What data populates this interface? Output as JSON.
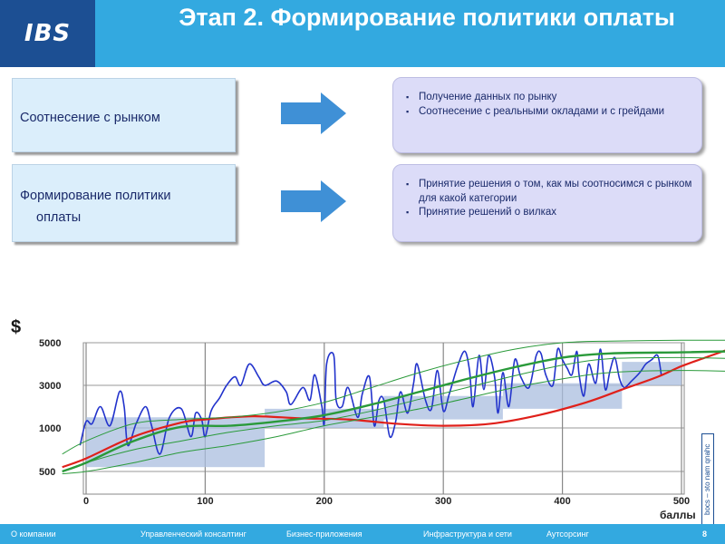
{
  "header": {
    "logo": "IBS",
    "title": "Этап 2. Формирование политики оплаты"
  },
  "rows": [
    {
      "left_lines": [
        "Соотнесение с рынком"
      ],
      "bullets": [
        "Получение данных по рынку",
        "Соотнесение с реальными окладами и с грейдами"
      ]
    },
    {
      "left_lines": [
        "Формирование политики",
        "оплаты"
      ],
      "bullets": [
        "Принятие решения о том, как мы соотносимся с рынком для какой категории",
        "Принятие решений о вилках"
      ]
    }
  ],
  "colors": {
    "header_bg": "#33a9e0",
    "logo_bg": "#1c4f93",
    "arrow": "#3f90d6",
    "blue_line": "#2233cc",
    "red_line": "#e0201a",
    "green_line": "#2a9a3a",
    "band": "#a9bedf"
  },
  "side_text": "bocs – эtо nam qnahc",
  "chart_data": {
    "type": "line",
    "y_unit_label": "$",
    "xlabel": "баллы",
    "x_ticks": [
      0,
      100,
      200,
      300,
      400,
      500
    ],
    "y_ticks": [
      500,
      1000,
      3000,
      5000
    ],
    "xlim": [
      0,
      500
    ],
    "grid": "vertical and horizontal gridlines",
    "bands": [
      {
        "x0": 0,
        "x1": 150,
        "ylo": 550,
        "yhi": 1500
      },
      {
        "x0": 150,
        "x1": 250,
        "ylo": 1000,
        "yhi": 1900
      },
      {
        "x0": 250,
        "x1": 350,
        "ylo": 1400,
        "yhi": 2500
      },
      {
        "x0": 350,
        "x1": 450,
        "ylo": 1900,
        "yhi": 3100
      },
      {
        "x0": 450,
        "x1": 550,
        "ylo": 3000,
        "yhi": 4100
      }
    ],
    "series": [
      {
        "style": "blue",
        "points": [
          [
            -5,
            800
          ],
          [
            0,
            1300
          ],
          [
            5,
            1200
          ],
          [
            12,
            2000
          ],
          [
            20,
            1100
          ],
          [
            28,
            2700
          ],
          [
            32,
            2000
          ],
          [
            35,
            800
          ],
          [
            42,
            1200
          ],
          [
            50,
            2000
          ],
          [
            55,
            1100
          ],
          [
            62,
            700
          ],
          [
            70,
            1500
          ],
          [
            80,
            1900
          ],
          [
            88,
            900
          ],
          [
            92,
            1700
          ],
          [
            97,
            1400
          ],
          [
            100,
            900
          ],
          [
            105,
            1800
          ],
          [
            112,
            2400
          ],
          [
            118,
            3000
          ],
          [
            125,
            3400
          ],
          [
            130,
            3000
          ],
          [
            137,
            4000
          ],
          [
            145,
            3400
          ],
          [
            150,
            3000
          ],
          [
            160,
            3200
          ],
          [
            168,
            2700
          ],
          [
            172,
            2100
          ],
          [
            182,
            2900
          ],
          [
            188,
            2300
          ],
          [
            192,
            3500
          ],
          [
            198,
            2000
          ],
          [
            200,
            1200
          ],
          [
            202,
            4000
          ],
          [
            208,
            4400
          ],
          [
            210,
            2300
          ],
          [
            215,
            2000
          ],
          [
            220,
            2900
          ],
          [
            228,
            1500
          ],
          [
            232,
            2600
          ],
          [
            238,
            3400
          ],
          [
            242,
            1100
          ],
          [
            246,
            2300
          ],
          [
            250,
            2300
          ],
          [
            255,
            900
          ],
          [
            260,
            1300
          ],
          [
            264,
            2700
          ],
          [
            270,
            1700
          ],
          [
            275,
            3100
          ],
          [
            278,
            4000
          ],
          [
            285,
            2300
          ],
          [
            290,
            1900
          ],
          [
            295,
            3700
          ],
          [
            300,
            1800
          ],
          [
            305,
            2600
          ],
          [
            312,
            3900
          ],
          [
            318,
            4600
          ],
          [
            322,
            3700
          ],
          [
            325,
            2000
          ],
          [
            330,
            4400
          ],
          [
            334,
            2800
          ],
          [
            338,
            4400
          ],
          [
            343,
            3400
          ],
          [
            346,
            1700
          ],
          [
            350,
            3600
          ],
          [
            355,
            2000
          ],
          [
            360,
            4200
          ],
          [
            365,
            3400
          ],
          [
            372,
            2900
          ],
          [
            378,
            4400
          ],
          [
            382,
            4500
          ],
          [
            386,
            3500
          ],
          [
            392,
            3000
          ],
          [
            396,
            4700
          ],
          [
            400,
            4200
          ],
          [
            404,
            3800
          ],
          [
            408,
            3500
          ],
          [
            412,
            4600
          ],
          [
            414,
            3500
          ],
          [
            418,
            2500
          ],
          [
            422,
            4000
          ],
          [
            428,
            3100
          ],
          [
            432,
            4700
          ],
          [
            436,
            2800
          ],
          [
            440,
            3700
          ],
          [
            444,
            4300
          ],
          [
            448,
            3300
          ],
          [
            452,
            2900
          ],
          [
            458,
            3200
          ],
          [
            465,
            3600
          ],
          [
            470,
            4000
          ],
          [
            475,
            4200
          ],
          [
            480,
            4400
          ],
          [
            483,
            3500
          ]
        ]
      },
      {
        "style": "red",
        "points": [
          [
            -20,
            550
          ],
          [
            0,
            650
          ],
          [
            40,
            900
          ],
          [
            80,
            1250
          ],
          [
            100,
            1400
          ],
          [
            140,
            1550
          ],
          [
            180,
            1450
          ],
          [
            220,
            1400
          ],
          [
            260,
            1200
          ],
          [
            300,
            1100
          ],
          [
            340,
            1200
          ],
          [
            380,
            1600
          ],
          [
            420,
            2200
          ],
          [
            450,
            2800
          ],
          [
            480,
            3400
          ],
          [
            500,
            3900
          ],
          [
            520,
            4300
          ],
          [
            545,
            4800
          ]
        ]
      },
      {
        "style": "green",
        "points": [
          [
            -20,
            500
          ],
          [
            0,
            600
          ],
          [
            40,
            850
          ],
          [
            80,
            1050
          ],
          [
            120,
            1100
          ],
          [
            160,
            1300
          ],
          [
            200,
            1600
          ],
          [
            240,
            2100
          ],
          [
            280,
            2700
          ],
          [
            320,
            3300
          ],
          [
            360,
            3850
          ],
          [
            400,
            4300
          ],
          [
            440,
            4500
          ],
          [
            500,
            4550
          ],
          [
            545,
            4600
          ]
        ]
      },
      {
        "style": "thin-green",
        "points": [
          [
            -20,
            700
          ],
          [
            0,
            850
          ],
          [
            40,
            1200
          ],
          [
            80,
            1400
          ],
          [
            120,
            1500
          ],
          [
            160,
            1750
          ],
          [
            200,
            2200
          ],
          [
            240,
            2900
          ],
          [
            280,
            3600
          ],
          [
            320,
            4200
          ],
          [
            360,
            4700
          ],
          [
            400,
            5000
          ],
          [
            440,
            5100
          ],
          [
            500,
            5150
          ],
          [
            545,
            5150
          ]
        ]
      },
      {
        "style": "thin-green",
        "points": [
          [
            -20,
            450
          ],
          [
            0,
            500
          ],
          [
            40,
            600
          ],
          [
            80,
            720
          ],
          [
            120,
            800
          ],
          [
            160,
            900
          ],
          [
            200,
            1100
          ],
          [
            240,
            1500
          ],
          [
            280,
            1900
          ],
          [
            320,
            2400
          ],
          [
            360,
            2900
          ],
          [
            400,
            3300
          ],
          [
            440,
            3600
          ],
          [
            500,
            3700
          ],
          [
            545,
            3650
          ]
        ]
      },
      {
        "style": "thin-green",
        "points": [
          [
            -20,
            500
          ],
          [
            0,
            600
          ],
          [
            40,
            750
          ],
          [
            80,
            850
          ],
          [
            120,
            950
          ],
          [
            160,
            1100
          ],
          [
            200,
            1350
          ],
          [
            240,
            1800
          ],
          [
            280,
            2350
          ],
          [
            320,
            2900
          ],
          [
            360,
            3450
          ],
          [
            400,
            3950
          ],
          [
            440,
            4250
          ],
          [
            500,
            4300
          ],
          [
            545,
            4250
          ]
        ]
      }
    ]
  },
  "footer": {
    "items": [
      "О компании",
      "Управленческий консалтинг",
      "Бизнес-приложения",
      "Инфраструктура и сети",
      "Аутсорсинг"
    ],
    "page": "8"
  }
}
